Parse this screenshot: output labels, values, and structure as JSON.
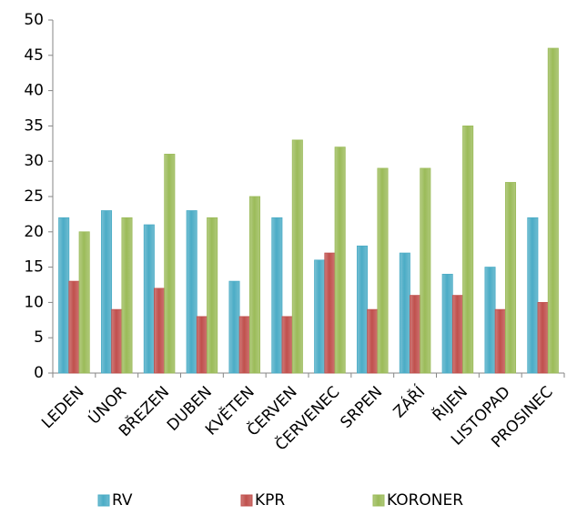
{
  "chart_data": {
    "type": "bar",
    "categories": [
      "LEDEN",
      "ÚNOR",
      "BŘEZEN",
      "DUBEN",
      "KVĚTEN",
      "ČERVEN",
      "ČERVENEC",
      "SRPEN",
      "ZÁŘÍ",
      "ŘIJEN",
      "LISTOPAD",
      "PROSINEC"
    ],
    "series": [
      {
        "name": "RV",
        "color": "#4bacc6",
        "values": [
          22,
          23,
          21,
          23,
          13,
          22,
          16,
          18,
          17,
          14,
          15,
          22
        ]
      },
      {
        "name": "KPR",
        "color": "#c0504d",
        "values": [
          13,
          9,
          12,
          8,
          8,
          8,
          17,
          9,
          11,
          11,
          9,
          10
        ]
      },
      {
        "name": "KORONER",
        "color": "#9bbb59",
        "values": [
          20,
          22,
          31,
          22,
          25,
          33,
          32,
          29,
          29,
          35,
          27,
          46
        ]
      }
    ],
    "ylim": [
      0,
      50
    ],
    "yticks": [
      0,
      5,
      10,
      15,
      20,
      25,
      30,
      35,
      40,
      45,
      50
    ],
    "grid": false,
    "legend": "bottom"
  }
}
